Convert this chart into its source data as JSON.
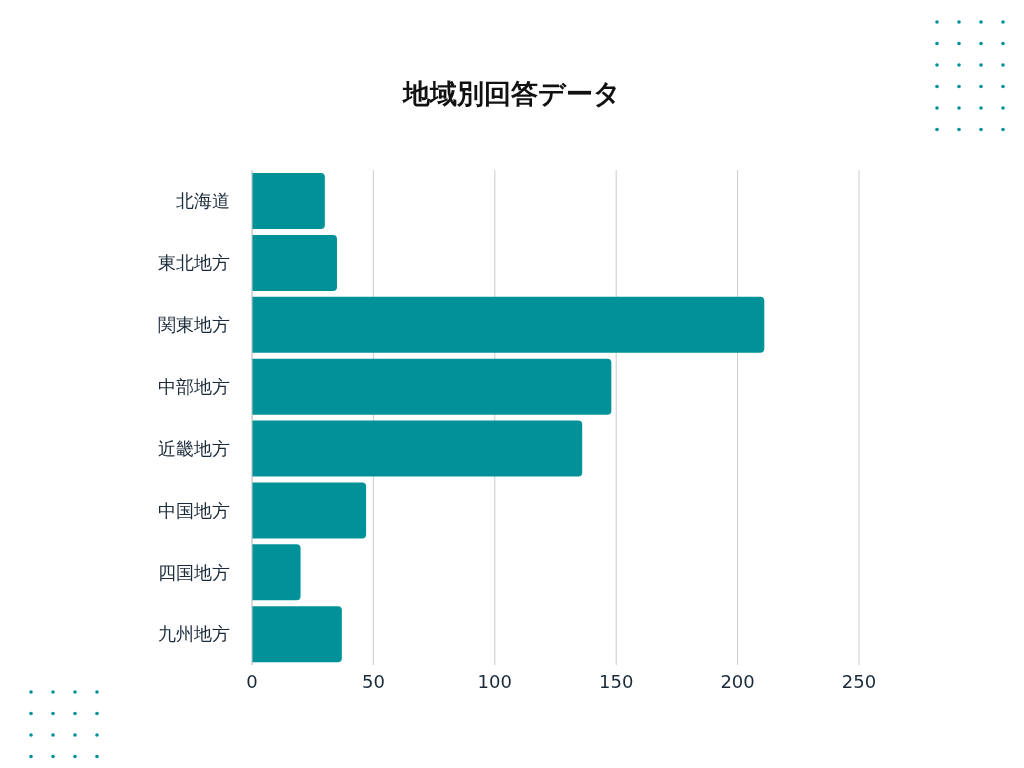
{
  "chart_data": {
    "type": "bar",
    "orientation": "horizontal",
    "title": "地域別回答データ",
    "categories": [
      "北海道",
      "東北地方",
      "関東地方",
      "中部地方",
      "近畿地方",
      "中国地方",
      "四国地方",
      "九州地方"
    ],
    "values": [
      30,
      35,
      211,
      148,
      136,
      47,
      20,
      37
    ],
    "color": "#009298",
    "xlim": [
      0,
      250
    ],
    "xticks": [
      0,
      50,
      100,
      150,
      200,
      250
    ],
    "grid": "x"
  }
}
